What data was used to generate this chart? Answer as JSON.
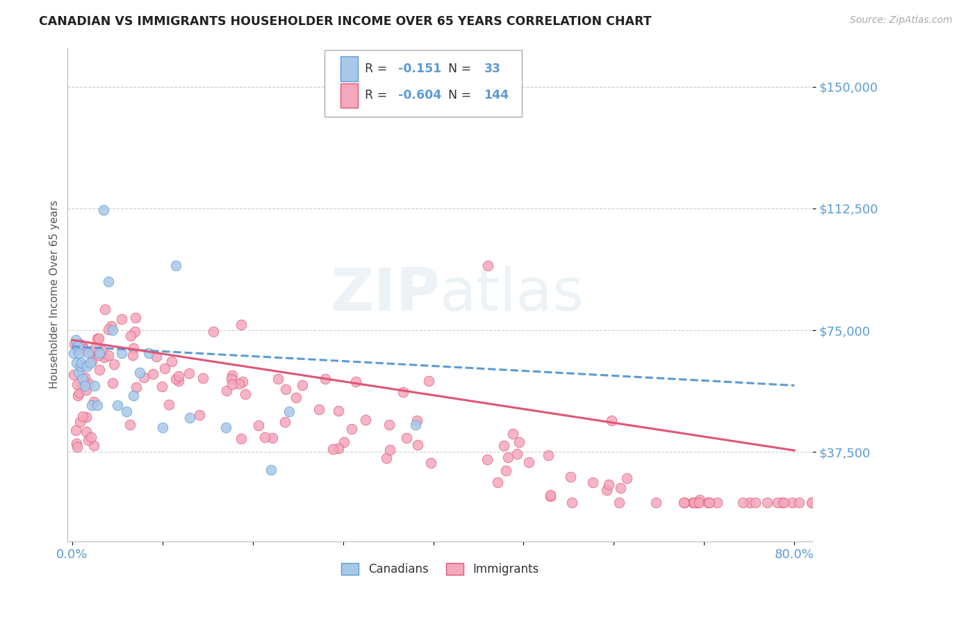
{
  "title": "CANADIAN VS IMMIGRANTS HOUSEHOLDER INCOME OVER 65 YEARS CORRELATION CHART",
  "source": "Source: ZipAtlas.com",
  "ylabel": "Householder Income Over 65 years",
  "xlim": [
    -0.005,
    0.82
  ],
  "ylim": [
    10000,
    162000
  ],
  "yticks": [
    37500,
    75000,
    112500,
    150000
  ],
  "ytick_labels": [
    "$37,500",
    "$75,000",
    "$112,500",
    "$150,000"
  ],
  "xticks": [
    0.0,
    0.1,
    0.2,
    0.3,
    0.4,
    0.5,
    0.6,
    0.7,
    0.8
  ],
  "xtick_labels": [
    "0.0%",
    "",
    "",
    "",
    "",
    "",
    "",
    "",
    "80.0%"
  ],
  "canadian_R": -0.151,
  "canadian_N": 33,
  "immigrant_R": -0.604,
  "immigrant_N": 144,
  "canadian_color": "#a8c8e8",
  "immigrant_color": "#f5a8bc",
  "canadian_line_color": "#5b9bd5",
  "immigrant_line_color": "#e05575",
  "title_color": "#222222",
  "axis_label_color": "#555555",
  "ytick_color": "#5b9bd5",
  "xtick_color": "#5b9bd5",
  "watermark_zip": "ZIP",
  "watermark_atlas": "atlas",
  "background_color": "#ffffff",
  "grid_color": "#cccccc",
  "legend_text_color": "#333333",
  "legend_value_color": "#5b9bd5",
  "can_trend_x0": 0.0,
  "can_trend_x1": 0.8,
  "can_trend_y0": 70000,
  "can_trend_y1": 58000,
  "imm_trend_x0": 0.0,
  "imm_trend_x1": 0.8,
  "imm_trend_y0": 72000,
  "imm_trend_y1": 38000
}
